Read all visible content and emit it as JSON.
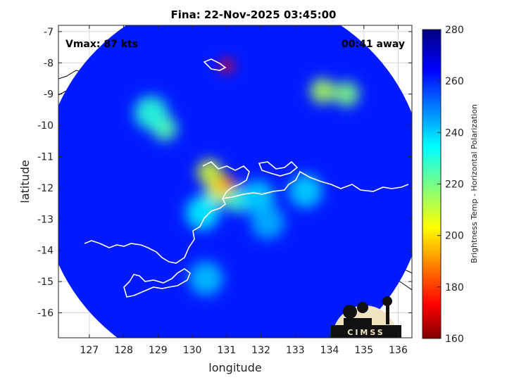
{
  "chart_data": {
    "type": "heatmap",
    "title": "Fina: 22-Nov-2025 03:45:00",
    "xlabel": "longitude",
    "ylabel": "latitude",
    "xlim": [
      126.1,
      136.4
    ],
    "ylim": [
      -16.8,
      -6.8
    ],
    "xticks": [
      127,
      128,
      129,
      130,
      131,
      132,
      133,
      134,
      135,
      136
    ],
    "yticks": [
      -7,
      -8,
      -9,
      -10,
      -11,
      -12,
      -13,
      -14,
      -15,
      -16
    ],
    "grid": true,
    "annotations": {
      "vmax": "Vmax: 87 kts",
      "away": "00:41 away"
    },
    "colorbar": {
      "label": "Brightness Temp - Horizontal Polarization",
      "range": [
        160,
        280
      ],
      "ticks": [
        280,
        260,
        240,
        220,
        200,
        180,
        160
      ],
      "colormap": "jet"
    },
    "swath_center": [
      131.2,
      -11.9
    ],
    "swath_radius_deg": 5.6,
    "background_tb": 262,
    "warm_regions": [
      {
        "lon": 130.7,
        "lat": -12.2,
        "tb": 222
      },
      {
        "lon": 130.5,
        "lat": -11.5,
        "tb": 210
      },
      {
        "lon": 130.9,
        "lat": -12.0,
        "tb": 200
      },
      {
        "lon": 131.1,
        "lat": -11.9,
        "tb": 180
      },
      {
        "lon": 131.3,
        "lat": -12.4,
        "tb": 228
      },
      {
        "lon": 130.3,
        "lat": -12.8,
        "tb": 236
      },
      {
        "lon": 131.9,
        "lat": -12.3,
        "tb": 240
      },
      {
        "lon": 131.0,
        "lat": -8.1,
        "tb": 175
      },
      {
        "lon": 129.2,
        "lat": -10.1,
        "tb": 225
      },
      {
        "lon": 128.8,
        "lat": -9.6,
        "tb": 230
      },
      {
        "lon": 133.8,
        "lat": -8.9,
        "tb": 215
      },
      {
        "lon": 134.5,
        "lat": -9.0,
        "tb": 220
      },
      {
        "lon": 130.4,
        "lat": -14.9,
        "tb": 242
      },
      {
        "lon": 132.2,
        "lat": -13.1,
        "tb": 244
      },
      {
        "lon": 133.3,
        "lat": -12.1,
        "tb": 240
      }
    ]
  },
  "logo": {
    "text": "CIMSS"
  },
  "colors": {
    "coast": "#ffffff",
    "coast_outside": "#000000",
    "grid": "#d8d8d8"
  }
}
